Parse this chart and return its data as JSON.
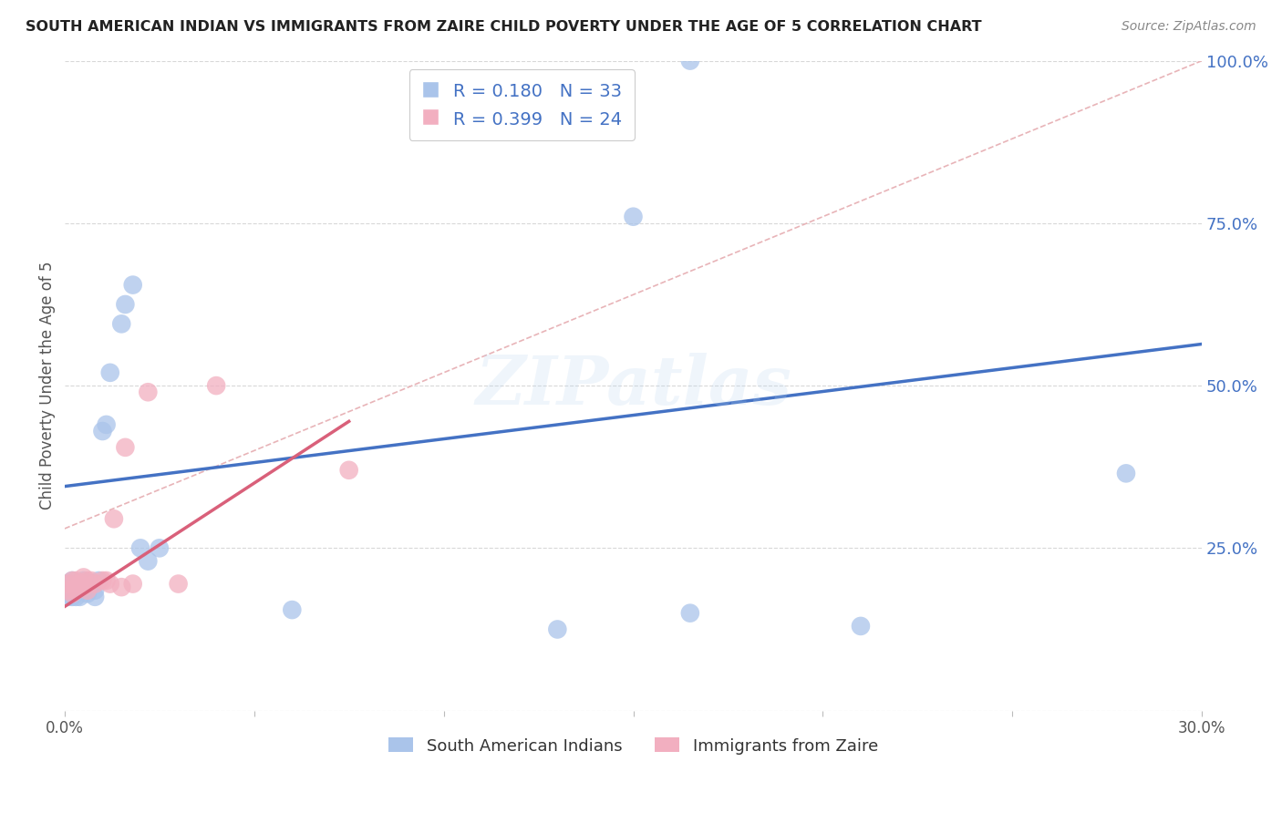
{
  "title": "SOUTH AMERICAN INDIAN VS IMMIGRANTS FROM ZAIRE CHILD POVERTY UNDER THE AGE OF 5 CORRELATION CHART",
  "source": "Source: ZipAtlas.com",
  "ylabel": "Child Poverty Under the Age of 5",
  "xlim": [
    0,
    0.3
  ],
  "ylim": [
    0,
    1.0
  ],
  "xticks": [
    0.0,
    0.05,
    0.1,
    0.15,
    0.2,
    0.25,
    0.3
  ],
  "yticks": [
    0.0,
    0.25,
    0.5,
    0.75,
    1.0
  ],
  "legend_label1": "South American Indians",
  "legend_label2": "Immigrants from Zaire",
  "blue_color": "#aac4ea",
  "pink_color": "#f2afc0",
  "blue_line_color": "#4472c4",
  "pink_line_color": "#d9607a",
  "ref_line_color": "#e8b4b8",
  "R1": 0.18,
  "N1": 33,
  "R2": 0.399,
  "N2": 24,
  "blue_intercept": 0.345,
  "blue_slope": 0.73,
  "pink_intercept": 0.16,
  "pink_slope": 3.8,
  "blue_points_x": [
    0.001,
    0.001,
    0.001,
    0.002,
    0.002,
    0.003,
    0.003,
    0.004,
    0.004,
    0.005,
    0.005,
    0.006,
    0.006,
    0.007,
    0.008,
    0.008,
    0.009,
    0.01,
    0.011,
    0.012,
    0.015,
    0.016,
    0.018,
    0.02,
    0.022,
    0.025,
    0.06,
    0.13,
    0.165,
    0.21,
    0.15,
    0.165,
    0.28
  ],
  "blue_points_y": [
    0.195,
    0.185,
    0.175,
    0.2,
    0.175,
    0.185,
    0.175,
    0.185,
    0.175,
    0.2,
    0.185,
    0.195,
    0.18,
    0.195,
    0.185,
    0.175,
    0.2,
    0.43,
    0.44,
    0.52,
    0.595,
    0.625,
    0.655,
    0.25,
    0.23,
    0.25,
    0.155,
    0.125,
    0.15,
    0.13,
    0.76,
    1.0,
    0.365
  ],
  "pink_points_x": [
    0.001,
    0.001,
    0.002,
    0.002,
    0.003,
    0.003,
    0.004,
    0.005,
    0.005,
    0.006,
    0.006,
    0.007,
    0.008,
    0.01,
    0.011,
    0.012,
    0.013,
    0.015,
    0.016,
    0.018,
    0.022,
    0.03,
    0.04,
    0.075
  ],
  "pink_points_y": [
    0.195,
    0.185,
    0.2,
    0.18,
    0.2,
    0.185,
    0.195,
    0.205,
    0.19,
    0.2,
    0.185,
    0.2,
    0.195,
    0.2,
    0.2,
    0.195,
    0.295,
    0.19,
    0.405,
    0.195,
    0.49,
    0.195,
    0.5,
    0.37
  ],
  "background_color": "#ffffff",
  "grid_color": "#d8d8d8",
  "tick_label_color": "#4472c4",
  "title_color": "#222222",
  "source_color": "#888888",
  "ylabel_color": "#555555"
}
